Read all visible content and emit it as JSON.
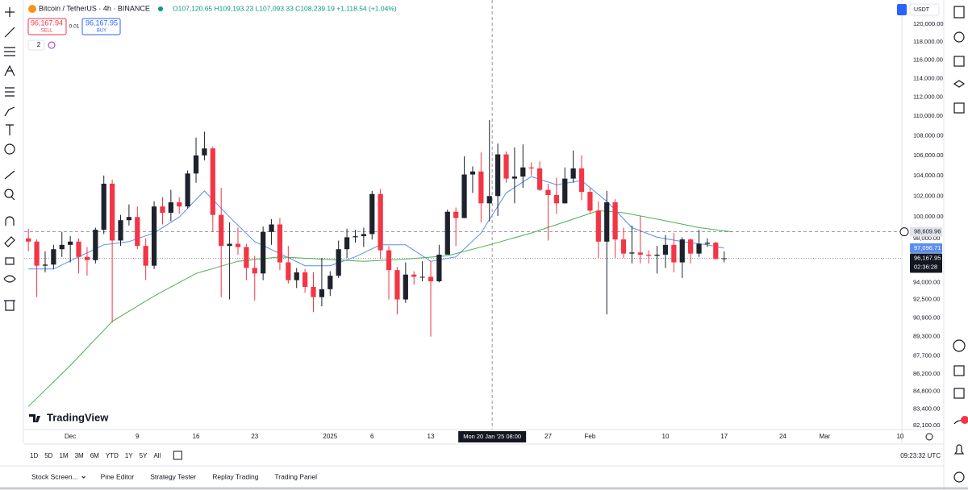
{
  "header": {
    "symbol": "Bitcoin / TetherUS · 4h · BINANCE",
    "ohlc": "O107,120.65 H109,193.23 L107,093.33 C108,239.19 +1,118.54 (+1.04%)",
    "sell_price": "96,167.94",
    "sell": "SELL",
    "spread": "0.01",
    "buy_price": "96,167.95",
    "buy": "BUY",
    "indicators": "2",
    "currency": "USDT",
    "logo": "TradingView"
  },
  "chart_data": {
    "type": "candlestick",
    "log_scale": true,
    "up_color": "#1e222d",
    "down_color": "#f23645",
    "xlim": [
      -5.5,
      99.2
    ],
    "ylim": [
      81790,
      122780
    ],
    "xticks": [
      {
        "value": 0,
        "label": "Dec"
      },
      {
        "value": 8,
        "label": "9"
      },
      {
        "value": 15,
        "label": "16"
      },
      {
        "value": 22,
        "label": "23"
      },
      {
        "value": 31,
        "label": "2025"
      },
      {
        "value": 36,
        "label": "6"
      },
      {
        "value": 43,
        "label": "13"
      },
      {
        "value": 57,
        "label": "27"
      },
      {
        "value": 62,
        "label": "Feb"
      },
      {
        "value": 71,
        "label": "10"
      },
      {
        "value": 78,
        "label": "17"
      },
      {
        "value": 85,
        "label": "24"
      },
      {
        "value": 90,
        "label": "Mar"
      },
      {
        "value": 99,
        "label": "10"
      }
    ],
    "yticks": [
      {
        "value": 120000,
        "label": "120,000.00"
      },
      {
        "value": 118000,
        "label": "118,000.00"
      },
      {
        "value": 116000,
        "label": "116,000.00"
      },
      {
        "value": 114000,
        "label": "114,000.00"
      },
      {
        "value": 112000,
        "label": "112,000.00"
      },
      {
        "value": 110000,
        "label": "110,000.00"
      },
      {
        "value": 108000,
        "label": "108,000.00"
      },
      {
        "value": 106000,
        "label": "106,000.00"
      },
      {
        "value": 104000,
        "label": "104,000.00"
      },
      {
        "value": 102000,
        "label": "102,000.00"
      },
      {
        "value": 100000,
        "label": "100,000.00"
      },
      {
        "value": 98000,
        "label": "98,000.00"
      },
      {
        "value": 94000,
        "label": "94,000.00"
      },
      {
        "value": 92500,
        "label": "92,500.00"
      },
      {
        "value": 90900,
        "label": "90,900.00"
      },
      {
        "value": 89300,
        "label": "89,300.00"
      },
      {
        "value": 87700,
        "label": "87,700.00"
      },
      {
        "value": 86200,
        "label": "86,200.00"
      },
      {
        "value": 84800,
        "label": "84,800.00"
      },
      {
        "value": 83400,
        "label": "83,400.00"
      },
      {
        "value": 82100,
        "label": "82,100.00"
      }
    ],
    "x": [
      -5,
      -4,
      -3,
      -2,
      -1,
      0,
      1,
      2,
      3,
      4,
      5,
      6,
      7,
      8,
      9,
      10,
      11,
      12,
      13,
      14,
      15,
      16,
      17,
      18,
      19,
      20,
      21,
      22,
      23,
      24,
      25,
      26,
      27,
      28,
      29,
      30,
      31,
      32,
      33,
      34,
      35,
      36,
      37,
      38,
      39,
      40,
      41,
      42,
      43,
      44,
      45,
      46,
      47,
      48,
      49,
      50,
      51,
      52,
      53,
      54,
      55,
      56,
      57,
      58,
      59,
      60,
      61,
      62,
      63,
      64,
      65,
      66,
      67,
      68,
      69,
      70,
      71,
      72,
      73,
      74,
      75,
      76,
      77,
      78
    ],
    "ohlc": [
      [
        98000,
        98900,
        96800,
        97700
      ],
      [
        97700,
        97900,
        92700,
        95500
      ],
      [
        95500,
        96800,
        94900,
        95600
      ],
      [
        95600,
        97400,
        95200,
        97000
      ],
      [
        97000,
        98600,
        96300,
        97400
      ],
      [
        97400,
        98200,
        95800,
        97700
      ],
      [
        97700,
        98000,
        94800,
        96300
      ],
      [
        96300,
        97200,
        94600,
        96000
      ],
      [
        96000,
        99000,
        95700,
        98800
      ],
      [
        98800,
        104000,
        98400,
        103200
      ],
      [
        103200,
        103600,
        90500,
        97800
      ],
      [
        97800,
        100200,
        97300,
        99700
      ],
      [
        99700,
        101200,
        99200,
        100000
      ],
      [
        100000,
        101000,
        97000,
        97300
      ],
      [
        97300,
        98000,
        94200,
        95500
      ],
      [
        95500,
        101500,
        95200,
        101000
      ],
      [
        101000,
        101900,
        99300,
        100400
      ],
      [
        100400,
        102600,
        99600,
        101400
      ],
      [
        101400,
        101900,
        100300,
        101000
      ],
      [
        101000,
        104500,
        100800,
        104200
      ],
      [
        104200,
        107800,
        103300,
        106000
      ],
      [
        106000,
        108400,
        105500,
        106700
      ],
      [
        106700,
        106900,
        98600,
        100200
      ],
      [
        100200,
        102800,
        92700,
        97300
      ],
      [
        97300,
        99500,
        92500,
        97500
      ],
      [
        97500,
        99000,
        96500,
        97200
      ],
      [
        97200,
        97500,
        94200,
        95300
      ],
      [
        95300,
        96400,
        92400,
        94800
      ],
      [
        94800,
        99100,
        94200,
        98600
      ],
      [
        98600,
        99800,
        97400,
        99300
      ],
      [
        99300,
        99900,
        95100,
        95800
      ],
      [
        95800,
        97300,
        93900,
        94200
      ],
      [
        94200,
        95300,
        93500,
        94900
      ],
      [
        94900,
        95200,
        93100,
        93600
      ],
      [
        93600,
        94900,
        91400,
        92700
      ],
      [
        92700,
        96200,
        91900,
        93400
      ],
      [
        93400,
        95000,
        92800,
        94600
      ],
      [
        94600,
        97800,
        94400,
        97000
      ],
      [
        97000,
        98900,
        96200,
        98100
      ],
      [
        98100,
        98800,
        97600,
        98200
      ],
      [
        98200,
        99000,
        97200,
        98400
      ],
      [
        98400,
        102500,
        97900,
        102200
      ],
      [
        102200,
        102700,
        96100,
        96900
      ],
      [
        96900,
        97300,
        92500,
        95100
      ],
      [
        95100,
        95400,
        91200,
        92500
      ],
      [
        92500,
        95800,
        92200,
        94700
      ],
      [
        94700,
        95000,
        93800,
        94500
      ],
      [
        94500,
        95900,
        94100,
        94500
      ],
      [
        94500,
        95900,
        89300,
        94100
      ],
      [
        94100,
        97400,
        94000,
        96500
      ],
      [
        96500,
        100700,
        96500,
        100500
      ],
      [
        100500,
        100900,
        97300,
        99900
      ],
      [
        99900,
        105900,
        99900,
        104100
      ],
      [
        104100,
        104900,
        102300,
        104400
      ],
      [
        104400,
        106300,
        99500,
        101300
      ],
      [
        101300,
        109600,
        99600,
        102000
      ],
      [
        102000,
        107200,
        100100,
        106100
      ],
      [
        106100,
        106400,
        103300,
        103700
      ],
      [
        103700,
        106800,
        101300,
        103900
      ],
      [
        103900,
        107100,
        102800,
        104800
      ],
      [
        104800,
        105300,
        104000,
        104700
      ],
      [
        104700,
        105400,
        102500,
        102600
      ],
      [
        102600,
        103200,
        97800,
        102100
      ],
      [
        102100,
        103800,
        100300,
        101300
      ],
      [
        101300,
        104800,
        101300,
        103700
      ],
      [
        103700,
        106500,
        103300,
        104700
      ],
      [
        104700,
        106000,
        101600,
        102400
      ],
      [
        102400,
        102800,
        100300,
        100600
      ],
      [
        100600,
        101500,
        96200,
        97700
      ],
      [
        97700,
        102500,
        91200,
        101400
      ],
      [
        101400,
        101700,
        96200,
        97900
      ],
      [
        97900,
        99000,
        96200,
        96600
      ],
      [
        96600,
        99200,
        95700,
        96700
      ],
      [
        96700,
        100100,
        95700,
        96500
      ],
      [
        96500,
        96900,
        95700,
        96400
      ],
      [
        96400,
        97300,
        94800,
        96500
      ],
      [
        96500,
        98300,
        95300,
        97400
      ],
      [
        97400,
        98500,
        94900,
        95800
      ],
      [
        95800,
        98100,
        94400,
        97900
      ],
      [
        97900,
        98000,
        95700,
        96600
      ],
      [
        96600,
        98800,
        96300,
        97500
      ],
      [
        97500,
        98000,
        97200,
        97600
      ],
      [
        97600,
        97700,
        96100,
        96100
      ],
      [
        96100,
        96800,
        95800,
        96167.95
      ]
    ],
    "series": [
      {
        "color": "#5b8def",
        "x": [
          -5,
          -2,
          1,
          4,
          7,
          10,
          13,
          16,
          19,
          22,
          25,
          28,
          31,
          34,
          37,
          40,
          43,
          46,
          49,
          52,
          55,
          58,
          61,
          64,
          67,
          70,
          73,
          76,
          78
        ],
        "values": [
          95200,
          95200,
          96300,
          97400,
          97700,
          98500,
          100000,
          102500,
          100000,
          97700,
          96600,
          95500,
          95500,
          96300,
          97400,
          97400,
          95900,
          96300,
          98500,
          102300,
          103900,
          103100,
          103500,
          101500,
          99000,
          98100,
          97700,
          97400,
          97100
        ]
      },
      {
        "color": "#4caf50",
        "x": [
          -5,
          0,
          5,
          10,
          15,
          20,
          25,
          30,
          35,
          40,
          45,
          50,
          55,
          60,
          63,
          66,
          70,
          75,
          79
        ],
        "values": [
          83600,
          86900,
          90600,
          92800,
          94800,
          95900,
          96300,
          96100,
          95900,
          96100,
          96400,
          97400,
          98500,
          99800,
          100600,
          100400,
          99800,
          99000,
          98600
        ]
      }
    ],
    "price_tags": [
      {
        "value": 98609.96,
        "label": "98,609.96",
        "color": "#e0e3eb",
        "text_color": "#131722"
      },
      {
        "value": 97096.71,
        "label": "97,096.71",
        "color": "#5b8def",
        "text_color": "#ffffff"
      },
      {
        "value": 96167.95,
        "label": "96,167.95",
        "color": "#131722",
        "text_color": "#ffffff"
      }
    ],
    "countdown": "02:36:28",
    "crosshair": {
      "x": 50.33,
      "label": "Mon 20 Jan '25   08:00"
    }
  },
  "footer": {
    "ranges": [
      "1D",
      "5D",
      "1M",
      "3M",
      "6M",
      "YTD",
      "1Y",
      "5Y",
      "All"
    ],
    "clock": "09:23:32 UTC",
    "tabs": [
      "Stock Screen...",
      "Pine Editor",
      "Strategy Tester",
      "Replay Trading",
      "Trading Panel"
    ]
  }
}
